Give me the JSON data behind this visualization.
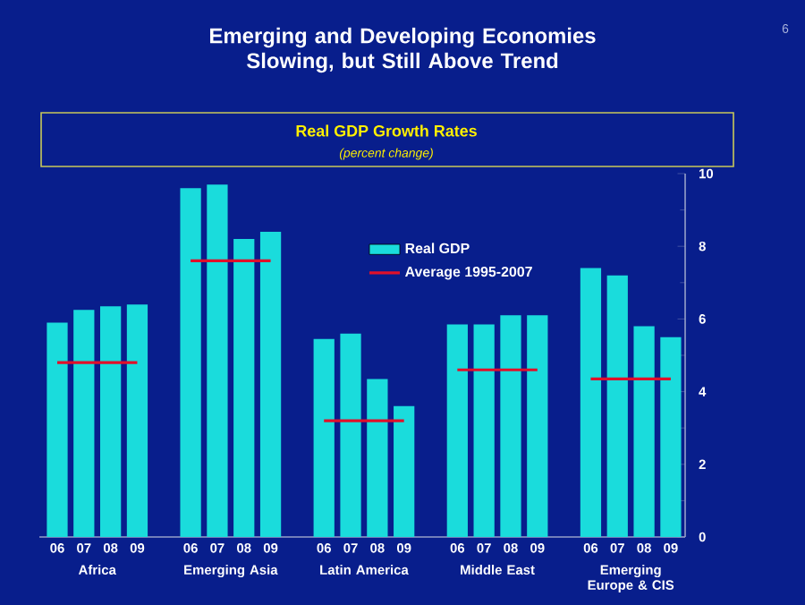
{
  "chart_data": {
    "type": "bar",
    "title": "Emerging and Developing Economies Slowing, but Still Above Trend",
    "subtitle": "Real GDP Growth Rates",
    "categories": [
      "06",
      "07",
      "08",
      "09",
      null,
      "06",
      "07",
      "08",
      "09",
      null,
      "06",
      "07",
      "08",
      "09",
      null,
      "06",
      "07",
      "08",
      "09",
      null,
      "06",
      "07",
      "08",
      "09"
    ],
    "series": [
      {
        "name": "Real GDP",
        "color": "#1adcdc",
        "values": [
          5.9,
          6.25,
          6.35,
          6.4,
          null,
          9.6,
          9.7,
          8.2,
          8.4,
          null,
          5.45,
          5.6,
          4.35,
          3.6,
          null,
          5.85,
          5.85,
          6.1,
          6.1,
          null,
          7.4,
          7.2,
          5.8,
          5.5
        ]
      },
      {
        "name": "Average 1995-2007",
        "type": "line",
        "color": "#e0102a",
        "values": [
          4.8,
          4.8,
          4.8,
          4.8,
          null,
          7.6,
          7.6,
          7.6,
          7.6,
          null,
          3.2,
          3.2,
          3.2,
          3.2,
          null,
          4.6,
          4.6,
          4.6,
          4.6,
          null,
          4.35,
          4.35,
          4.35,
          4.35
        ]
      }
    ],
    "annotations": [
      "Africa",
      "Emerging Asia",
      "Latin America",
      "Middle East",
      "Emerging Europe & CIS",
      "(percent change)",
      "6"
    ],
    "ylim": [
      0,
      10
    ],
    "yticks": [
      0,
      2,
      4,
      6,
      8,
      10
    ],
    "grid": false,
    "legend": "top",
    "marker": "none",
    "line_style": "solid"
  }
}
